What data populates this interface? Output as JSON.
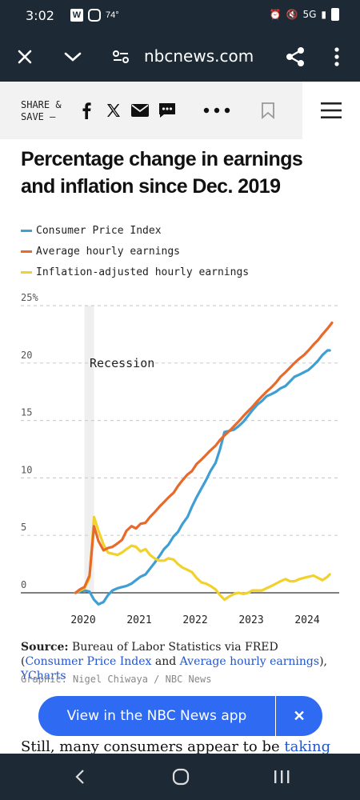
{
  "status_bar": {
    "time": "3:02",
    "temperature": "74°",
    "network": "5G",
    "left_icons": [
      "w-app-icon",
      "instagram-icon"
    ],
    "right_icons": [
      "alarm-icon",
      "mute-icon",
      "signal-icon",
      "battery-icon"
    ]
  },
  "browser": {
    "url": "nbcnews.com"
  },
  "share_bar": {
    "label": "SHARE &\nSAVE —"
  },
  "article": {
    "headline": "Percentage change in earnings and inflation since Dec. 2019",
    "body_start": "Still, many consumers appear to be ",
    "body_link": "taking"
  },
  "source": {
    "prefix": "Source:",
    "text1": " Bureau of Labor Statistics via FRED (",
    "link1": "Consumer Price Index",
    "text2": " and ",
    "link2": "Average hourly earnings",
    "text3": "), ",
    "link3": "YCharts",
    "credit": "Graphic: Nigel Chiwaya / NBC News"
  },
  "app_banner": {
    "label": "View in the NBC News app",
    "close": "✕"
  },
  "chart_data": {
    "type": "line",
    "title": "Percentage change in earnings and inflation since Dec. 2019",
    "y_ticks": [
      "25%",
      "20",
      "15",
      "10",
      "5",
      "0"
    ],
    "x_ticks": [
      "2020",
      "2021",
      "2022",
      "2023",
      "2024"
    ],
    "ylim": [
      -2,
      25
    ],
    "xlim": [
      2019.9,
      2024.5
    ],
    "grid": true,
    "legend_position": "top",
    "annotation": {
      "label": "Recession",
      "x_start": 2020.08,
      "x_end": 2020.25
    },
    "series": [
      {
        "name": "Consumer Price Index",
        "color": "#3f9fd3",
        "points": [
          [
            2019.92,
            0
          ],
          [
            2020.08,
            0.2
          ],
          [
            2020.17,
            0.1
          ],
          [
            2020.25,
            -0.6
          ],
          [
            2020.33,
            -1.0
          ],
          [
            2020.42,
            -0.8
          ],
          [
            2020.5,
            -0.2
          ],
          [
            2020.58,
            0.2
          ],
          [
            2020.67,
            0.4
          ],
          [
            2020.75,
            0.5
          ],
          [
            2020.83,
            0.6
          ],
          [
            2020.92,
            0.8
          ],
          [
            2021.0,
            1.1
          ],
          [
            2021.08,
            1.4
          ],
          [
            2021.17,
            1.6
          ],
          [
            2021.25,
            2.1
          ],
          [
            2021.33,
            2.6
          ],
          [
            2021.42,
            3.2
          ],
          [
            2021.5,
            3.8
          ],
          [
            2021.58,
            4.2
          ],
          [
            2021.67,
            4.9
          ],
          [
            2021.75,
            5.3
          ],
          [
            2021.83,
            6.0
          ],
          [
            2021.92,
            6.6
          ],
          [
            2022.0,
            7.5
          ],
          [
            2022.08,
            8.3
          ],
          [
            2022.17,
            9.1
          ],
          [
            2022.25,
            9.8
          ],
          [
            2022.33,
            10.6
          ],
          [
            2022.42,
            11.3
          ],
          [
            2022.5,
            12.5
          ],
          [
            2022.58,
            14.0
          ],
          [
            2022.67,
            14.1
          ],
          [
            2022.75,
            14.2
          ],
          [
            2022.83,
            14.5
          ],
          [
            2022.92,
            14.9
          ],
          [
            2023.0,
            15.4
          ],
          [
            2023.08,
            15.9
          ],
          [
            2023.17,
            16.4
          ],
          [
            2023.25,
            16.7
          ],
          [
            2023.33,
            17.1
          ],
          [
            2023.42,
            17.3
          ],
          [
            2023.5,
            17.5
          ],
          [
            2023.58,
            17.8
          ],
          [
            2023.67,
            18.0
          ],
          [
            2023.75,
            18.4
          ],
          [
            2023.83,
            18.8
          ],
          [
            2023.92,
            19.0
          ],
          [
            2024.0,
            19.2
          ],
          [
            2024.08,
            19.4
          ],
          [
            2024.17,
            19.8
          ],
          [
            2024.25,
            20.2
          ],
          [
            2024.33,
            20.7
          ],
          [
            2024.42,
            21.1
          ],
          [
            2024.46,
            21.1
          ]
        ]
      },
      {
        "name": "Average hourly earnings",
        "color": "#e86a2a",
        "points": [
          [
            2019.92,
            0
          ],
          [
            2020.0,
            0.3
          ],
          [
            2020.08,
            0.5
          ],
          [
            2020.17,
            1.5
          ],
          [
            2020.25,
            5.8
          ],
          [
            2020.33,
            4.5
          ],
          [
            2020.42,
            3.7
          ],
          [
            2020.5,
            3.9
          ],
          [
            2020.58,
            4.0
          ],
          [
            2020.67,
            4.3
          ],
          [
            2020.75,
            4.6
          ],
          [
            2020.83,
            5.4
          ],
          [
            2020.92,
            5.8
          ],
          [
            2021.0,
            5.6
          ],
          [
            2021.08,
            6.0
          ],
          [
            2021.17,
            6.1
          ],
          [
            2021.25,
            6.6
          ],
          [
            2021.33,
            7.0
          ],
          [
            2021.42,
            7.5
          ],
          [
            2021.5,
            7.9
          ],
          [
            2021.58,
            8.3
          ],
          [
            2021.67,
            8.7
          ],
          [
            2021.75,
            9.3
          ],
          [
            2021.83,
            9.8
          ],
          [
            2021.92,
            10.3
          ],
          [
            2022.0,
            10.6
          ],
          [
            2022.08,
            11.2
          ],
          [
            2022.17,
            11.6
          ],
          [
            2022.25,
            12.0
          ],
          [
            2022.33,
            12.4
          ],
          [
            2022.42,
            12.8
          ],
          [
            2022.5,
            13.3
          ],
          [
            2022.58,
            13.7
          ],
          [
            2022.67,
            14.1
          ],
          [
            2022.75,
            14.5
          ],
          [
            2022.83,
            14.9
          ],
          [
            2022.92,
            15.4
          ],
          [
            2023.0,
            15.8
          ],
          [
            2023.08,
            16.2
          ],
          [
            2023.17,
            16.7
          ],
          [
            2023.25,
            17.1
          ],
          [
            2023.33,
            17.5
          ],
          [
            2023.42,
            17.9
          ],
          [
            2023.5,
            18.3
          ],
          [
            2023.58,
            18.8
          ],
          [
            2023.67,
            19.2
          ],
          [
            2023.75,
            19.6
          ],
          [
            2023.83,
            20.0
          ],
          [
            2023.92,
            20.4
          ],
          [
            2024.0,
            20.7
          ],
          [
            2024.08,
            21.1
          ],
          [
            2024.17,
            21.6
          ],
          [
            2024.25,
            22.0
          ],
          [
            2024.33,
            22.5
          ],
          [
            2024.42,
            23.0
          ],
          [
            2024.5,
            23.5
          ]
        ]
      },
      {
        "name": "Inflation-adjusted hourly earnings",
        "color": "#f2d12a",
        "points": [
          [
            2019.92,
            0
          ],
          [
            2020.0,
            0.2
          ],
          [
            2020.08,
            0.4
          ],
          [
            2020.17,
            1.3
          ],
          [
            2020.25,
            6.6
          ],
          [
            2020.33,
            5.4
          ],
          [
            2020.42,
            4.2
          ],
          [
            2020.5,
            3.5
          ],
          [
            2020.58,
            3.4
          ],
          [
            2020.67,
            3.3
          ],
          [
            2020.75,
            3.5
          ],
          [
            2020.83,
            3.8
          ],
          [
            2020.92,
            4.1
          ],
          [
            2021.0,
            4.0
          ],
          [
            2021.08,
            3.6
          ],
          [
            2021.17,
            3.8
          ],
          [
            2021.25,
            3.3
          ],
          [
            2021.33,
            3.0
          ],
          [
            2021.42,
            2.8
          ],
          [
            2021.5,
            2.8
          ],
          [
            2021.58,
            3.0
          ],
          [
            2021.67,
            2.9
          ],
          [
            2021.75,
            2.5
          ],
          [
            2021.83,
            2.2
          ],
          [
            2021.92,
            2.0
          ],
          [
            2022.0,
            1.8
          ],
          [
            2022.08,
            1.3
          ],
          [
            2022.17,
            0.9
          ],
          [
            2022.25,
            0.8
          ],
          [
            2022.33,
            0.6
          ],
          [
            2022.42,
            0.3
          ],
          [
            2022.5,
            -0.2
          ],
          [
            2022.58,
            -0.6
          ],
          [
            2022.67,
            -0.3
          ],
          [
            2022.75,
            -0.1
          ],
          [
            2022.83,
            0.0
          ],
          [
            2022.92,
            -0.1
          ],
          [
            2023.0,
            0.0
          ],
          [
            2023.08,
            0.2
          ],
          [
            2023.17,
            0.2
          ],
          [
            2023.25,
            0.2
          ],
          [
            2023.33,
            0.4
          ],
          [
            2023.42,
            0.6
          ],
          [
            2023.5,
            0.8
          ],
          [
            2023.58,
            1.0
          ],
          [
            2023.67,
            1.2
          ],
          [
            2023.75,
            1.0
          ],
          [
            2023.83,
            1.0
          ],
          [
            2023.92,
            1.2
          ],
          [
            2024.0,
            1.3
          ],
          [
            2024.08,
            1.4
          ],
          [
            2024.17,
            1.5
          ],
          [
            2024.25,
            1.3
          ],
          [
            2024.33,
            1.1
          ],
          [
            2024.42,
            1.4
          ],
          [
            2024.46,
            1.6
          ]
        ]
      }
    ]
  }
}
